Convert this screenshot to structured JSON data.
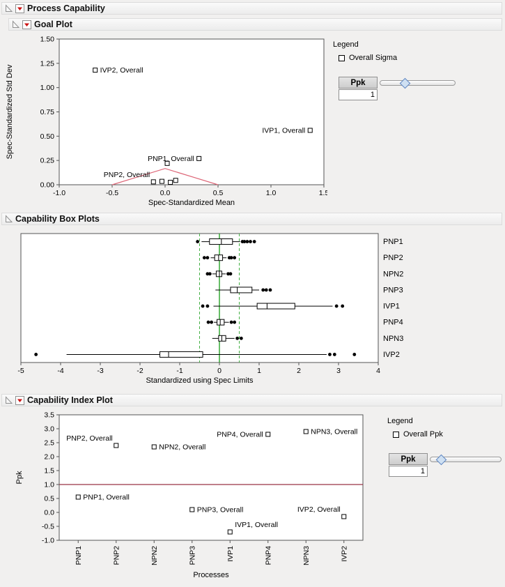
{
  "header": {
    "title": "Process Capability"
  },
  "goal": {
    "title": "Goal Plot",
    "legend_title": "Legend",
    "legend_item": "Overall Sigma",
    "slider": {
      "label": "Ppk",
      "value": "1",
      "fraction": 0.33
    }
  },
  "box": {
    "title": "Capability Box Plots"
  },
  "index": {
    "title": "Capability Index Plot",
    "legend_title": "Legend",
    "legend_item": "Overall Ppk",
    "slider": {
      "label": "Ppk",
      "value": "1",
      "fraction": 0.16
    }
  },
  "chart_data": [
    {
      "type": "scatter",
      "title": "Goal Plot",
      "xlabel": "Spec-Standardized Mean",
      "ylabel": "Spec-Standardized Std Dev",
      "xlim": [
        -1.0,
        1.5
      ],
      "ylim": [
        0,
        1.5
      ],
      "xticks": [
        {
          "v": -1.0,
          "t": "-1.0"
        },
        {
          "v": -0.5,
          "t": "-0.5"
        },
        {
          "v": 0.0,
          "t": "0.0"
        },
        {
          "v": 0.5,
          "t": "0.5"
        },
        {
          "v": 1.0,
          "t": "1.0"
        },
        {
          "v": 1.5,
          "t": "1.5"
        }
      ],
      "yticks": [
        {
          "v": 0,
          "t": "0.00"
        },
        {
          "v": 0.25,
          "t": "0.25"
        },
        {
          "v": 0.5,
          "t": "0.50"
        },
        {
          "v": 0.75,
          "t": "0.75"
        },
        {
          "v": 1.0,
          "t": "1.00"
        },
        {
          "v": 1.25,
          "t": "1.25"
        },
        {
          "v": 1.5,
          "t": "1.50"
        }
      ],
      "goal_triangle": {
        "vertices": [
          [
            -0.5,
            0
          ],
          [
            0,
            0.167
          ],
          [
            0.5,
            0
          ]
        ],
        "color": "#dd6677"
      },
      "marker": "open-square",
      "points": [
        {
          "label": "IVP2, Overall",
          "x": -0.66,
          "y": 1.18,
          "label_side": "right"
        },
        {
          "label": "IVP1, Overall",
          "x": 1.37,
          "y": 0.56,
          "label_side": "left"
        },
        {
          "label": "PNP1, Overall",
          "x": 0.32,
          "y": 0.27,
          "label_side": "left"
        },
        {
          "label": "PNP2, Overall",
          "x": -0.11,
          "y": 0.03,
          "label_side": "left-up"
        },
        {
          "x": 0.02,
          "y": 0.22
        },
        {
          "x": -0.03,
          "y": 0.035
        },
        {
          "x": 0.05,
          "y": 0.025
        },
        {
          "x": 0.1,
          "y": 0.045
        }
      ]
    },
    {
      "type": "boxplot",
      "title": "Capability Box Plots",
      "xlabel": "Standardized using Spec Limits",
      "xlim": [
        -5,
        4
      ],
      "xticks": [
        -5,
        -4,
        -3,
        -2,
        -1,
        0,
        1,
        2,
        3,
        4
      ],
      "center_line": {
        "x": 0,
        "color": "#27a327",
        "style": "solid"
      },
      "spec_lines": {
        "x": [
          -0.5,
          0.5
        ],
        "color": "#45b045",
        "style": "dashed"
      },
      "rows": [
        {
          "name": "PNP1",
          "whisker_low": -0.45,
          "q1": -0.25,
          "median": 0.05,
          "q3": 0.33,
          "whisker_high": 0.52,
          "dots": [
            -0.55,
            0.58,
            0.63,
            0.7,
            0.78,
            0.88
          ]
        },
        {
          "name": "PNP2",
          "whisker_low": -0.22,
          "q1": -0.12,
          "median": -0.02,
          "q3": 0.08,
          "whisker_high": 0.18,
          "dots": [
            -0.38,
            -0.3,
            0.25,
            0.3,
            0.38
          ]
        },
        {
          "name": "NPN2",
          "whisker_low": -0.18,
          "q1": -0.08,
          "median": 0.0,
          "q3": 0.06,
          "whisker_high": 0.16,
          "dots": [
            -0.3,
            -0.24,
            0.22,
            0.28
          ]
        },
        {
          "name": "PNP3",
          "whisker_low": -0.1,
          "q1": 0.28,
          "median": 0.45,
          "q3": 0.82,
          "whisker_high": 1.0,
          "dots": [
            1.1,
            1.18,
            1.28
          ]
        },
        {
          "name": "IVP1",
          "whisker_low": -0.15,
          "q1": 0.95,
          "median": 1.2,
          "q3": 1.9,
          "whisker_high": 2.85,
          "dots": [
            -0.42,
            -0.3,
            2.95,
            3.1
          ]
        },
        {
          "name": "PNP4",
          "whisker_low": -0.14,
          "q1": -0.06,
          "median": 0.02,
          "q3": 0.12,
          "whisker_high": 0.24,
          "dots": [
            -0.28,
            -0.2,
            0.3,
            0.38
          ]
        },
        {
          "name": "NPN3",
          "whisker_low": -0.18,
          "q1": -0.02,
          "median": 0.06,
          "q3": 0.16,
          "whisker_high": 0.38,
          "dots": [
            0.45,
            0.55
          ]
        },
        {
          "name": "IVP2",
          "whisker_low": -3.85,
          "q1": -1.5,
          "median": -1.28,
          "q3": -0.42,
          "whisker_high": 2.7,
          "dots": [
            -4.62,
            2.78,
            2.9,
            3.4
          ]
        }
      ]
    },
    {
      "type": "scatter",
      "title": "Capability Index Plot",
      "xlabel": "Processes",
      "ylabel": "Ppk",
      "ylim": [
        -1.0,
        3.5
      ],
      "yticks": [
        {
          "v": 3.5,
          "t": "3.5"
        },
        {
          "v": 3.0,
          "t": "3.0"
        },
        {
          "v": 2.5,
          "t": "2.5"
        },
        {
          "v": 2.0,
          "t": "2.0"
        },
        {
          "v": 1.5,
          "t": "1.5"
        },
        {
          "v": 1.0,
          "t": "1.0"
        },
        {
          "v": 0.5,
          "t": "0.5"
        },
        {
          "v": 0.0,
          "t": "0.0"
        },
        {
          "v": -0.5,
          "t": "-0.5"
        },
        {
          "v": -1.0,
          "t": "-1.0"
        }
      ],
      "categories": [
        "PNP1",
        "PNP2",
        "NPN2",
        "PNP3",
        "IVP1",
        "PNP4",
        "NPN3",
        "IVP2"
      ],
      "ref_line": {
        "y": 1.0,
        "color": "#993344"
      },
      "marker": "open-square",
      "points": [
        {
          "process": "PNP1",
          "ppk": 0.55,
          "label": "PNP1, Overall",
          "label_side": "right"
        },
        {
          "process": "PNP2",
          "ppk": 2.4,
          "label": "PNP2, Overall",
          "label_side": "left-up"
        },
        {
          "process": "NPN2",
          "ppk": 2.35,
          "label": "NPN2, Overall",
          "label_side": "right"
        },
        {
          "process": "PNP3",
          "ppk": 0.1,
          "label": "PNP3, Overall",
          "label_side": "right"
        },
        {
          "process": "IVP1",
          "ppk": -0.7,
          "label": "IVP1, Overall",
          "label_side": "right-up"
        },
        {
          "process": "PNP4",
          "ppk": 2.8,
          "label": "PNP4, Overall",
          "label_side": "left"
        },
        {
          "process": "NPN3",
          "ppk": 2.9,
          "label": "NPN3, Overall",
          "label_side": "right"
        },
        {
          "process": "IVP2",
          "ppk": -0.15,
          "label": "IVP2, Overall",
          "label_side": "left-up"
        }
      ]
    }
  ]
}
